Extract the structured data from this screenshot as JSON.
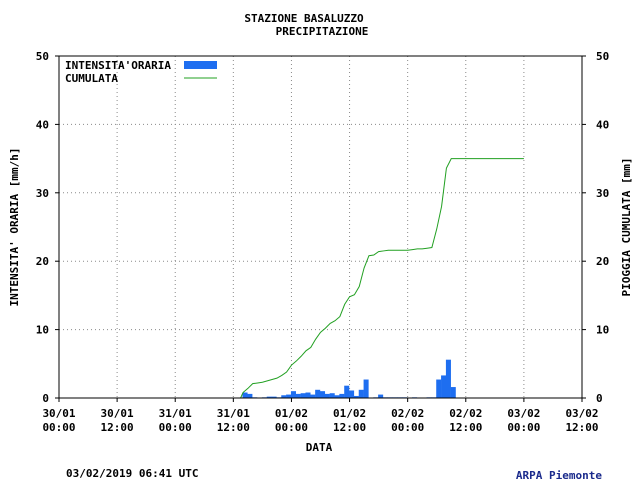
{
  "chart_data": {
    "type": "bar+line",
    "title_line1": "STAZIONE BASALUZZO",
    "title_line2": "PRECIPITAZIONE",
    "xlabel": "DATA",
    "ylabel_left": "INTENSITA' ORARIA [mm/h]",
    "ylabel_right": "PIOGGIA CUMULATA [mm]",
    "ylim": [
      0,
      50
    ],
    "y_ticks": [
      0,
      10,
      20,
      30,
      40,
      50
    ],
    "x_range_hours": [
      0,
      108
    ],
    "x_ticks": [
      {
        "date": "30/01",
        "time": "00:00"
      },
      {
        "date": "30/01",
        "time": "12:00"
      },
      {
        "date": "31/01",
        "time": "00:00"
      },
      {
        "date": "31/01",
        "time": "12:00"
      },
      {
        "date": "01/02",
        "time": "00:00"
      },
      {
        "date": "01/02",
        "time": "12:00"
      },
      {
        "date": "02/02",
        "time": "00:00"
      },
      {
        "date": "02/02",
        "time": "12:00"
      },
      {
        "date": "03/02",
        "time": "00:00"
      },
      {
        "date": "03/02",
        "time": "12:00"
      }
    ],
    "legend": {
      "position": "top-left",
      "bar_label": "INTENSITA'ORARIA",
      "line_label": "CUMULATA"
    },
    "grid": true,
    "colors": {
      "bars": "#1e6ef0",
      "line": "#22a022"
    },
    "series": [
      {
        "kind": "bar",
        "x_hours": [
          38,
          39,
          40,
          42,
          43,
          44,
          45,
          46,
          47,
          48,
          49,
          50,
          51,
          52,
          53,
          54,
          55,
          56,
          57,
          58,
          59,
          60,
          61,
          62,
          63,
          65,
          66,
          67,
          68,
          69,
          70,
          71
        ],
        "values": [
          0.8,
          0.6,
          0.1,
          0.1,
          0.2,
          0.2,
          0.1,
          0.4,
          0.5,
          1.0,
          0.6,
          0.7,
          0.8,
          0.5,
          1.2,
          1.0,
          0.6,
          0.7,
          0.4,
          0.6,
          1.8,
          1.1,
          0.3,
          1.2,
          2.7,
          0.1,
          0.5,
          0.1,
          0.1,
          0.1,
          0.1,
          0.1
        ]
      },
      {
        "kind": "bar",
        "x_hours": [
          73,
          76,
          77,
          78,
          79,
          80,
          81
        ],
        "values": [
          0.1,
          0.1,
          0.1,
          2.7,
          3.3,
          5.6,
          1.6
        ]
      },
      {
        "kind": "line",
        "x_hours": [
          0,
          37.5,
          38,
          39,
          40,
          41,
          42,
          43,
          44,
          45,
          46,
          47,
          48,
          49,
          50,
          51,
          52,
          53,
          54,
          55,
          56,
          57,
          58,
          59,
          60,
          61,
          62,
          63,
          64,
          65,
          66,
          67,
          68,
          69,
          70,
          71,
          72,
          73,
          74,
          75,
          76,
          77,
          78,
          79,
          80,
          81,
          82,
          83,
          84,
          85,
          86,
          87,
          88,
          89,
          90,
          91,
          92,
          93,
          94,
          95,
          96
        ],
        "values": [
          0,
          0,
          0.8,
          1.4,
          2.1,
          2.2,
          2.3,
          2.5,
          2.7,
          2.9,
          3.3,
          3.8,
          4.8,
          5.4,
          6.1,
          6.9,
          7.4,
          8.6,
          9.6,
          10.2,
          10.9,
          11.3,
          11.9,
          13.7,
          14.8,
          15.1,
          16.3,
          19.0,
          20.8,
          20.9,
          21.4,
          21.5,
          21.6,
          21.6,
          21.6,
          21.6,
          21.6,
          21.7,
          21.8,
          21.8,
          21.9,
          22.0,
          24.7,
          28.0,
          33.6,
          35.0,
          35.0,
          35.0,
          35.0,
          35.0,
          35.0,
          35.0,
          35.0,
          35.0,
          35.0,
          35.0,
          35.0,
          35.0,
          35.0,
          35.0,
          35.0
        ]
      }
    ]
  },
  "footer": {
    "timestamp": "03/02/2019 06:41 UTC",
    "brand": "ARPA Piemonte"
  }
}
